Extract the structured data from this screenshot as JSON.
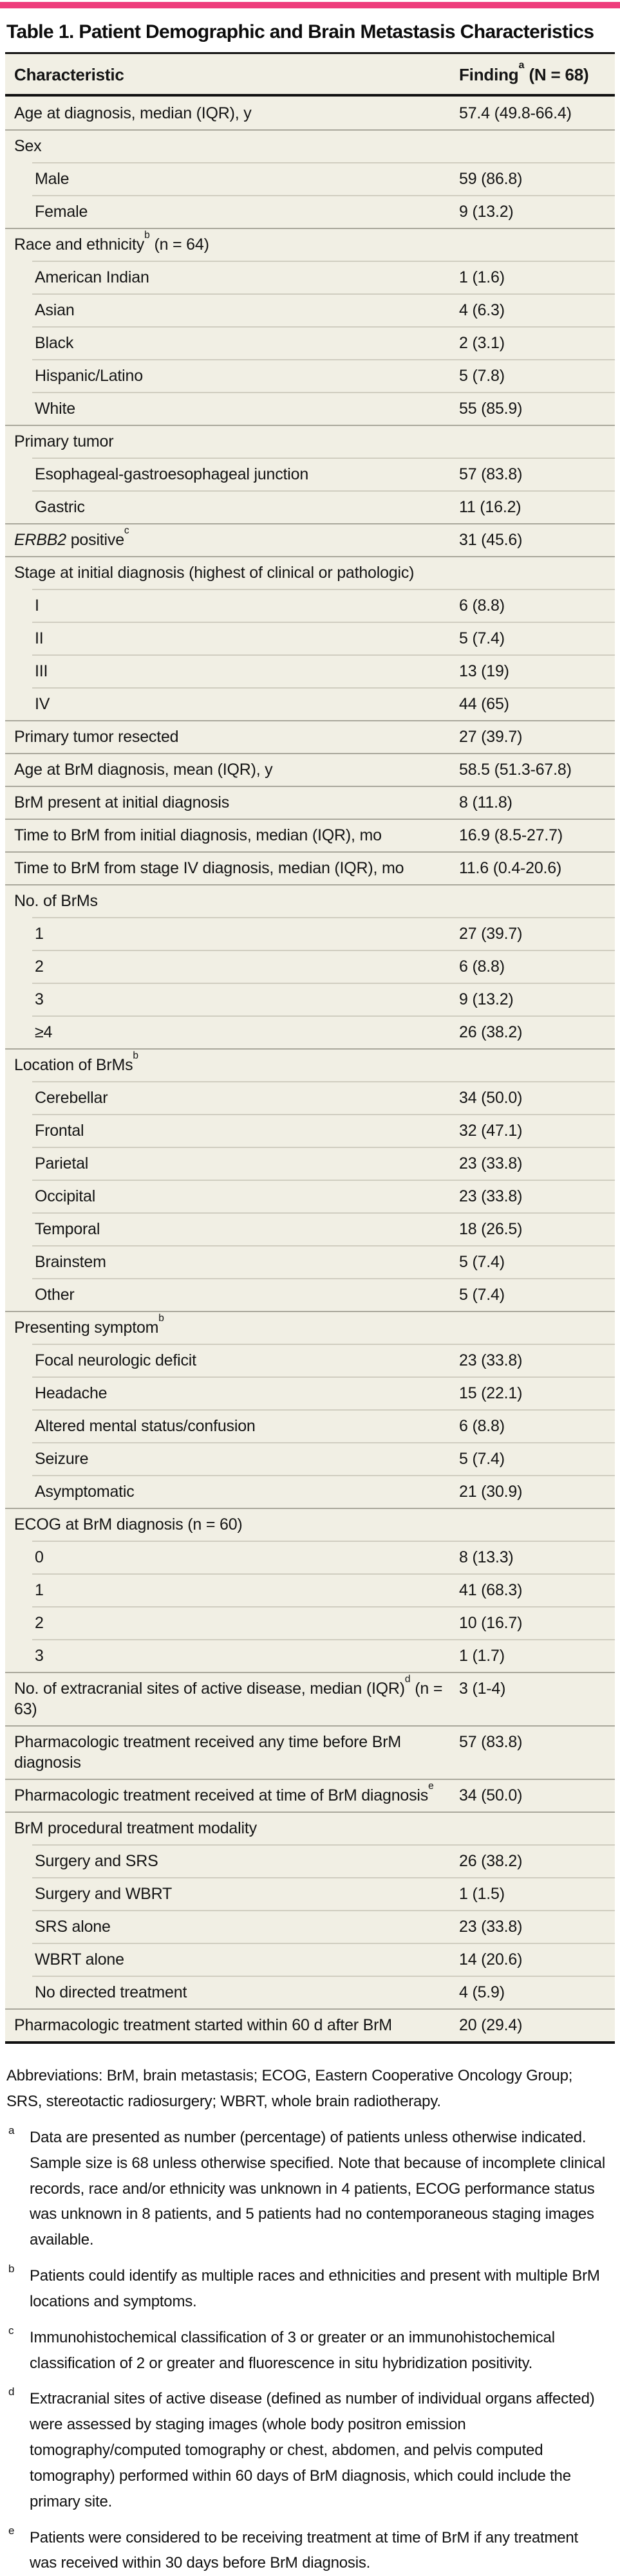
{
  "accent_color": "#ee3d7c",
  "table": {
    "title": "Table 1. Patient Demographic and Brain Metastasis Characteristics",
    "columns": {
      "characteristic": "Characteristic",
      "finding": "Finding",
      "finding_sup": "a",
      "finding_n": " (N = 68)"
    },
    "rows": [
      {
        "indent": 0,
        "label": "Age at diagnosis, median (IQR), y",
        "value": "57.4 (49.8-66.4)"
      },
      {
        "indent": 0,
        "label": "Sex",
        "value": ""
      },
      {
        "indent": 1,
        "label": "Male",
        "value": "59 (86.8)"
      },
      {
        "indent": 1,
        "label": "Female",
        "value": "9 (13.2)"
      },
      {
        "indent": 0,
        "label": "Race and ethnicity",
        "sup": "b",
        "label_after": " (n = 64)",
        "value": ""
      },
      {
        "indent": 1,
        "label": "American Indian",
        "value": "1 (1.6)"
      },
      {
        "indent": 1,
        "label": "Asian",
        "value": "4 (6.3)"
      },
      {
        "indent": 1,
        "label": "Black",
        "value": "2 (3.1)"
      },
      {
        "indent": 1,
        "label": "Hispanic/Latino",
        "value": "5 (7.8)"
      },
      {
        "indent": 1,
        "label": "White",
        "value": "55 (85.9)"
      },
      {
        "indent": 0,
        "label": "Primary tumor",
        "value": ""
      },
      {
        "indent": 1,
        "label": "Esophageal-gastroesophageal junction",
        "value": "57 (83.8)"
      },
      {
        "indent": 1,
        "label": "Gastric",
        "value": "11 (16.2)"
      },
      {
        "indent": 0,
        "italic": "ERBB2",
        "label": " positive",
        "sup": "c",
        "value": "31 (45.6)"
      },
      {
        "indent": 0,
        "label": "Stage at initial diagnosis (highest of clinical or pathologic)",
        "value": ""
      },
      {
        "indent": 1,
        "label": "I",
        "value": "6 (8.8)"
      },
      {
        "indent": 1,
        "label": "II",
        "value": "5 (7.4)"
      },
      {
        "indent": 1,
        "label": "III",
        "value": "13 (19)"
      },
      {
        "indent": 1,
        "label": "IV",
        "value": "44 (65)"
      },
      {
        "indent": 0,
        "label": "Primary tumor resected",
        "value": "27 (39.7)"
      },
      {
        "indent": 0,
        "label": "Age at BrM diagnosis, mean (IQR), y",
        "value": "58.5 (51.3-67.8)"
      },
      {
        "indent": 0,
        "label": "BrM present at initial diagnosis",
        "value": "8 (11.8)"
      },
      {
        "indent": 0,
        "label": "Time to BrM from initial diagnosis, median (IQR), mo",
        "value": "16.9 (8.5-27.7)"
      },
      {
        "indent": 0,
        "label": "Time to BrM from stage IV diagnosis, median (IQR), mo",
        "value": "11.6 (0.4-20.6)"
      },
      {
        "indent": 0,
        "label": "No. of BrMs",
        "value": ""
      },
      {
        "indent": 1,
        "label": "1",
        "value": "27 (39.7)"
      },
      {
        "indent": 1,
        "label": "2",
        "value": "6 (8.8)"
      },
      {
        "indent": 1,
        "label": "3",
        "value": "9 (13.2)"
      },
      {
        "indent": 1,
        "label": "≥4",
        "value": "26 (38.2)"
      },
      {
        "indent": 0,
        "label": "Location of BrMs",
        "sup": "b",
        "value": ""
      },
      {
        "indent": 1,
        "label": "Cerebellar",
        "value": "34 (50.0)"
      },
      {
        "indent": 1,
        "label": "Frontal",
        "value": "32 (47.1)"
      },
      {
        "indent": 1,
        "label": "Parietal",
        "value": "23 (33.8)"
      },
      {
        "indent": 1,
        "label": "Occipital",
        "value": "23 (33.8)"
      },
      {
        "indent": 1,
        "label": "Temporal",
        "value": "18 (26.5)"
      },
      {
        "indent": 1,
        "label": "Brainstem",
        "value": "5 (7.4)"
      },
      {
        "indent": 1,
        "label": "Other",
        "value": "5 (7.4)"
      },
      {
        "indent": 0,
        "label": "Presenting symptom",
        "sup": "b",
        "value": ""
      },
      {
        "indent": 1,
        "label": "Focal neurologic deficit",
        "value": "23 (33.8)"
      },
      {
        "indent": 1,
        "label": "Headache",
        "value": "15 (22.1)"
      },
      {
        "indent": 1,
        "label": "Altered mental status/confusion",
        "value": "6 (8.8)"
      },
      {
        "indent": 1,
        "label": "Seizure",
        "value": "5 (7.4)"
      },
      {
        "indent": 1,
        "label": "Asymptomatic",
        "value": "21 (30.9)"
      },
      {
        "indent": 0,
        "label": "ECOG at BrM diagnosis (n = 60)",
        "value": ""
      },
      {
        "indent": 1,
        "label": "0",
        "value": "8 (13.3)"
      },
      {
        "indent": 1,
        "label": "1",
        "value": "41 (68.3)"
      },
      {
        "indent": 1,
        "label": "2",
        "value": "10 (16.7)"
      },
      {
        "indent": 1,
        "label": "3",
        "value": "1 (1.7)"
      },
      {
        "indent": 0,
        "label": "No. of extracranial sites of active disease, median (IQR)",
        "sup": "d",
        "label_after": " (n = 63)",
        "value": "3 (1-4)"
      },
      {
        "indent": 0,
        "label": "Pharmacologic treatment received any time before BrM diagnosis",
        "value": "57 (83.8)"
      },
      {
        "indent": 0,
        "label": "Pharmacologic treatment received at time of BrM diagnosis",
        "sup": "e",
        "value": "34 (50.0)"
      },
      {
        "indent": 0,
        "label": "BrM procedural treatment modality",
        "value": ""
      },
      {
        "indent": 1,
        "label": "Surgery and SRS",
        "value": "26 (38.2)"
      },
      {
        "indent": 1,
        "label": "Surgery and WBRT",
        "value": "1 (1.5)"
      },
      {
        "indent": 1,
        "label": "SRS alone",
        "value": "23 (33.8)"
      },
      {
        "indent": 1,
        "label": "WBRT alone",
        "value": "14 (20.6)"
      },
      {
        "indent": 1,
        "label": "No directed treatment",
        "value": "4 (5.9)"
      },
      {
        "indent": 0,
        "label": "Pharmacologic treatment started within 60 d after BrM",
        "value": "20 (29.4)"
      }
    ]
  },
  "footnotes": {
    "abbreviations": "Abbreviations: BrM, brain metastasis; ECOG, Eastern Cooperative Oncology Group; SRS, stereotactic radiosurgery; WBRT, whole brain radiotherapy.",
    "items": [
      {
        "marker": "a",
        "text": "Data are presented as number (percentage) of patients unless otherwise indicated. Sample size is 68 unless otherwise specified. Note that because of incomplete clinical records, race and/or ethnicity was unknown in 4 patients, ECOG performance status was unknown in 8 patients, and 5 patients had no contemporaneous staging images available."
      },
      {
        "marker": "b",
        "text": "Patients could identify as multiple races and ethnicities and present with multiple BrM locations and symptoms."
      },
      {
        "marker": "c",
        "text": "Immunohistochemical classification of 3 or greater or an immunohistochemical classification of 2 or greater and fluorescence in situ hybridization positivity."
      },
      {
        "marker": "d",
        "text": "Extracranial sites of active disease (defined as number of individual organs affected) were assessed by staging images (whole body positron emission tomography/computed tomography or chest, abdomen, and pelvis computed tomography) performed within 60 days of BrM diagnosis, which could include the primary site."
      },
      {
        "marker": "e",
        "text": "Patients were considered to be receiving treatment at time of BrM if any treatment was received within 30 days before BrM diagnosis."
      }
    ]
  }
}
